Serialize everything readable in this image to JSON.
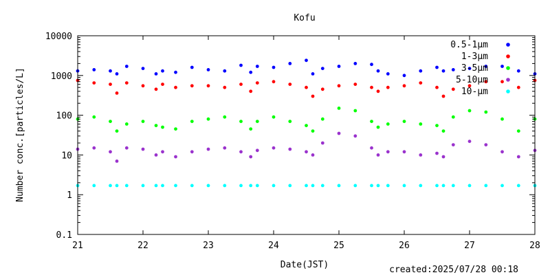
{
  "chart_data": {
    "type": "scatter",
    "title": "Kofu",
    "xlabel": "Date(JST)",
    "ylabel": "Number conc.[particles/L]",
    "xlim": [
      21,
      28
    ],
    "ylim": [
      0.1,
      10000
    ],
    "yscale": "log",
    "x_ticks": [
      "21",
      "22",
      "23",
      "24",
      "25",
      "26",
      "27",
      "28"
    ],
    "y_ticks": [
      "0.1",
      "1",
      "10",
      "100",
      "1000",
      "10000"
    ],
    "grid": false,
    "legend_position": "top-right",
    "series": [
      {
        "name": "0.5-1μm",
        "color": "#0000ff",
        "x": [
          21.0,
          21.25,
          21.5,
          21.6,
          21.75,
          22.0,
          22.2,
          22.3,
          22.5,
          22.75,
          23.0,
          23.25,
          23.5,
          23.65,
          23.75,
          24.0,
          24.25,
          24.5,
          24.6,
          24.75,
          25.0,
          25.25,
          25.5,
          25.6,
          25.75,
          26.0,
          26.25,
          26.5,
          26.6,
          26.75,
          27.0,
          27.25,
          27.5,
          27.75,
          28.0
        ],
        "values": [
          1300,
          1400,
          1300,
          1100,
          1700,
          1500,
          1100,
          1300,
          1200,
          1600,
          1400,
          1300,
          1800,
          1200,
          1700,
          1600,
          2000,
          2400,
          1100,
          1500,
          1700,
          2000,
          1900,
          1300,
          1100,
          1000,
          1300,
          1600,
          1300,
          1400,
          1500,
          1700,
          1700,
          1300,
          1100
        ]
      },
      {
        "name": "1-3μm",
        "color": "#ff0000",
        "x": [
          21.0,
          21.25,
          21.5,
          21.6,
          21.75,
          22.0,
          22.2,
          22.3,
          22.5,
          22.75,
          23.0,
          23.25,
          23.5,
          23.65,
          23.75,
          24.0,
          24.25,
          24.5,
          24.6,
          24.75,
          25.0,
          25.25,
          25.5,
          25.6,
          25.75,
          26.0,
          26.25,
          26.5,
          26.6,
          26.75,
          27.0,
          27.25,
          27.5,
          27.75,
          28.0
        ],
        "values": [
          750,
          650,
          600,
          360,
          650,
          550,
          450,
          600,
          500,
          550,
          550,
          500,
          600,
          400,
          650,
          700,
          600,
          500,
          300,
          450,
          550,
          600,
          500,
          400,
          500,
          550,
          650,
          500,
          300,
          450,
          550,
          700,
          700,
          500,
          750
        ]
      },
      {
        "name": "3-5μm",
        "color": "#00ff00",
        "x": [
          21.0,
          21.25,
          21.5,
          21.6,
          21.75,
          22.0,
          22.2,
          22.3,
          22.5,
          22.75,
          23.0,
          23.25,
          23.5,
          23.65,
          23.75,
          24.0,
          24.25,
          24.5,
          24.6,
          24.75,
          25.0,
          25.25,
          25.5,
          25.6,
          25.75,
          26.0,
          26.25,
          26.5,
          26.6,
          26.75,
          27.0,
          27.25,
          27.5,
          27.75,
          28.0
        ],
        "values": [
          80,
          90,
          70,
          40,
          60,
          70,
          55,
          50,
          45,
          70,
          80,
          90,
          70,
          45,
          70,
          90,
          70,
          55,
          40,
          80,
          150,
          130,
          70,
          50,
          60,
          70,
          60,
          55,
          40,
          90,
          130,
          120,
          80,
          40,
          80
        ]
      },
      {
        "name": "5-10μm",
        "color": "#9a32cd",
        "x": [
          21.0,
          21.25,
          21.5,
          21.6,
          21.75,
          22.0,
          22.2,
          22.3,
          22.5,
          22.75,
          23.0,
          23.25,
          23.5,
          23.65,
          23.75,
          24.0,
          24.25,
          24.5,
          24.6,
          24.75,
          25.0,
          25.25,
          25.5,
          25.6,
          25.75,
          26.0,
          26.25,
          26.5,
          26.6,
          26.75,
          27.0,
          27.25,
          27.5,
          27.75,
          28.0
        ],
        "values": [
          14,
          15,
          12,
          7,
          15,
          14,
          10,
          12,
          9,
          12,
          14,
          15,
          12,
          9,
          13,
          15,
          14,
          12,
          10,
          20,
          35,
          30,
          15,
          10,
          12,
          12,
          10,
          11,
          9,
          18,
          22,
          18,
          12,
          9,
          13
        ]
      },
      {
        "name": "10-μm",
        "color": "#00ffff",
        "x": [
          21.0,
          21.25,
          21.5,
          21.6,
          21.75,
          22.0,
          22.2,
          22.3,
          22.5,
          22.75,
          23.0,
          23.25,
          23.5,
          23.65,
          23.75,
          24.0,
          24.25,
          24.5,
          24.6,
          24.75,
          25.0,
          25.25,
          25.5,
          25.6,
          25.75,
          26.0,
          26.25,
          26.5,
          26.6,
          26.75,
          27.0,
          27.25,
          27.5,
          27.75,
          28.0
        ],
        "values": [
          1.7,
          1.7,
          1.7,
          1.7,
          1.7,
          1.7,
          1.7,
          1.7,
          1.7,
          1.7,
          1.7,
          1.7,
          1.7,
          1.7,
          1.7,
          1.7,
          1.7,
          1.7,
          1.7,
          1.7,
          1.7,
          1.7,
          1.7,
          1.7,
          1.7,
          1.7,
          1.7,
          1.7,
          1.7,
          1.7,
          1.7,
          1.7,
          1.7,
          1.7,
          1.7
        ]
      }
    ]
  },
  "footer": {
    "created": "created:2025/07/28 00:18"
  }
}
